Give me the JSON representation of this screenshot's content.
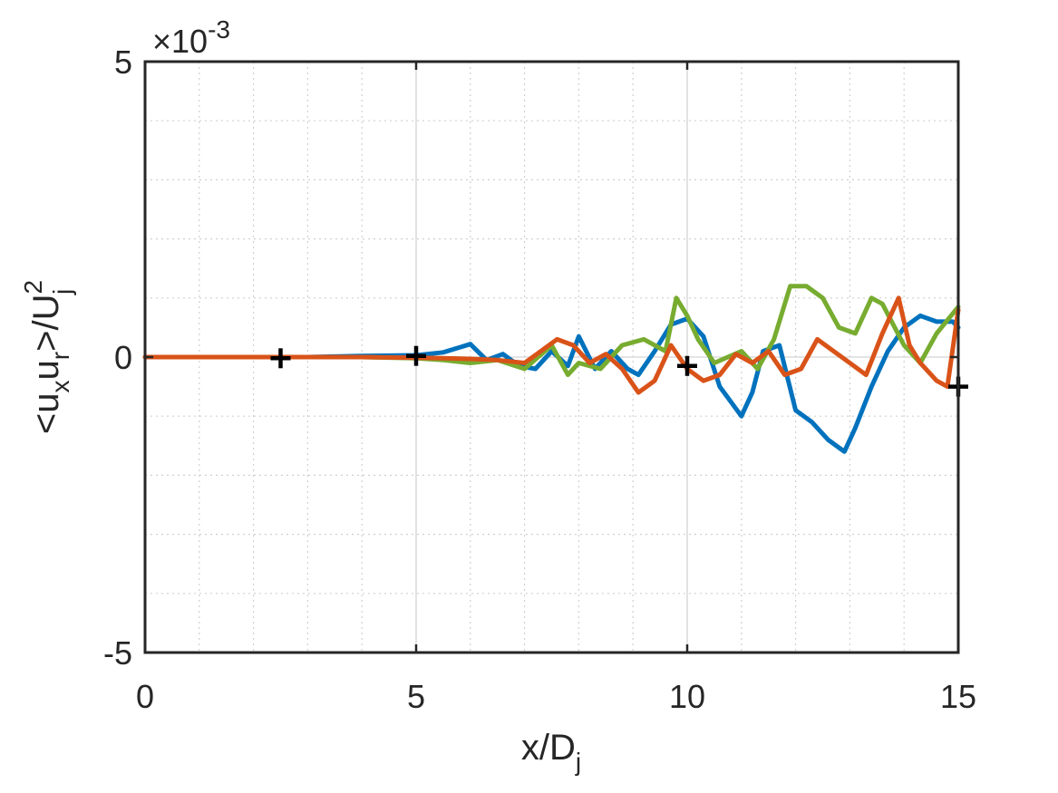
{
  "chart_data": {
    "type": "line",
    "xlabel": {
      "base": "x/D",
      "sub": "j"
    },
    "ylabel": {
      "lt": "<u",
      "sub1": "x",
      "mid": "u",
      "sub2": "r",
      "rest": ">/U",
      "sup": "2",
      "sub3": "j"
    },
    "exponent_label": {
      "base": "×10",
      "power": "-3"
    },
    "xlim": [
      0,
      15
    ],
    "ylim": [
      -5,
      5
    ],
    "y_scale_factor": 0.001,
    "xticks": [
      "0",
      "5",
      "10",
      "15"
    ],
    "yticks": [
      "-5",
      "0",
      "5"
    ],
    "grid": true,
    "minor_grid": true,
    "series": [
      {
        "color": "#0072BD",
        "x": [
          0,
          1,
          2,
          3,
          4,
          5,
          5.5,
          6,
          6.3,
          6.6,
          6.9,
          7.2,
          7.5,
          7.8,
          8,
          8.3,
          8.6,
          8.9,
          9.1,
          9.4,
          9.7,
          10,
          10.3,
          10.6,
          11,
          11.2,
          11.4,
          11.7,
          12,
          12.3,
          12.6,
          12.9,
          13.1,
          13.4,
          13.7,
          14,
          14.3,
          14.6,
          14.9,
          15
        ],
        "y": [
          0,
          0,
          0,
          0,
          0.02,
          0.03,
          0.08,
          0.22,
          -0.05,
          0.05,
          -0.15,
          -0.2,
          0.1,
          -0.15,
          0.35,
          -0.2,
          0.1,
          -0.2,
          -0.3,
          0.1,
          0.55,
          0.65,
          0.35,
          -0.5,
          -1.0,
          -0.6,
          0.1,
          0.2,
          -0.9,
          -1.1,
          -1.4,
          -1.6,
          -1.2,
          -0.5,
          0.1,
          0.5,
          0.7,
          0.6,
          0.6,
          0.5
        ]
      },
      {
        "color": "#77AC30",
        "x": [
          0,
          1,
          2,
          3,
          4,
          5,
          5.5,
          6,
          6.5,
          7,
          7.5,
          7.8,
          8,
          8.4,
          8.8,
          9.2,
          9.6,
          9.8,
          10,
          10.2,
          10.5,
          11,
          11.3,
          11.6,
          11.9,
          12.2,
          12.5,
          12.8,
          13.1,
          13.4,
          13.6,
          14,
          14.3,
          14.6,
          15
        ],
        "y": [
          0,
          0,
          0,
          0,
          0,
          -0.02,
          -0.05,
          -0.1,
          -0.05,
          -0.2,
          0.2,
          -0.3,
          -0.1,
          -0.2,
          0.2,
          0.3,
          0.1,
          1.0,
          0.7,
          0.3,
          -0.1,
          0.1,
          -0.2,
          0.3,
          1.2,
          1.2,
          1.0,
          0.5,
          0.4,
          1.0,
          0.9,
          0.2,
          -0.1,
          0.4,
          0.85
        ]
      },
      {
        "color": "#D95319",
        "x": [
          0,
          1,
          2,
          3,
          4,
          5,
          5.5,
          6,
          6.5,
          7,
          7.3,
          7.6,
          7.9,
          8.2,
          8.5,
          8.8,
          9.1,
          9.4,
          9.7,
          10,
          10.3,
          10.6,
          10.9,
          11.2,
          11.5,
          11.8,
          12.1,
          12.4,
          12.7,
          13,
          13.3,
          13.6,
          13.9,
          14.1,
          14.3,
          14.6,
          14.8,
          15
        ],
        "y": [
          0,
          0,
          0,
          0,
          0,
          -0.01,
          -0.02,
          -0.03,
          -0.05,
          -0.1,
          0.1,
          0.3,
          0.2,
          -0.1,
          0.05,
          -0.2,
          -0.6,
          -0.4,
          0.2,
          -0.2,
          -0.4,
          -0.3,
          0.05,
          -0.1,
          0.1,
          -0.3,
          -0.2,
          0.3,
          0.1,
          -0.1,
          -0.3,
          0.4,
          1.0,
          0.2,
          -0.1,
          -0.4,
          -0.5,
          0.8
        ]
      }
    ],
    "markers": {
      "symbol": "+",
      "color": "#000000",
      "points": [
        {
          "x": 2.5,
          "y": -0.02
        },
        {
          "x": 5.0,
          "y": 0.02
        },
        {
          "x": 10.0,
          "y": -0.15
        },
        {
          "x": 15.0,
          "y": -0.5
        }
      ]
    }
  }
}
